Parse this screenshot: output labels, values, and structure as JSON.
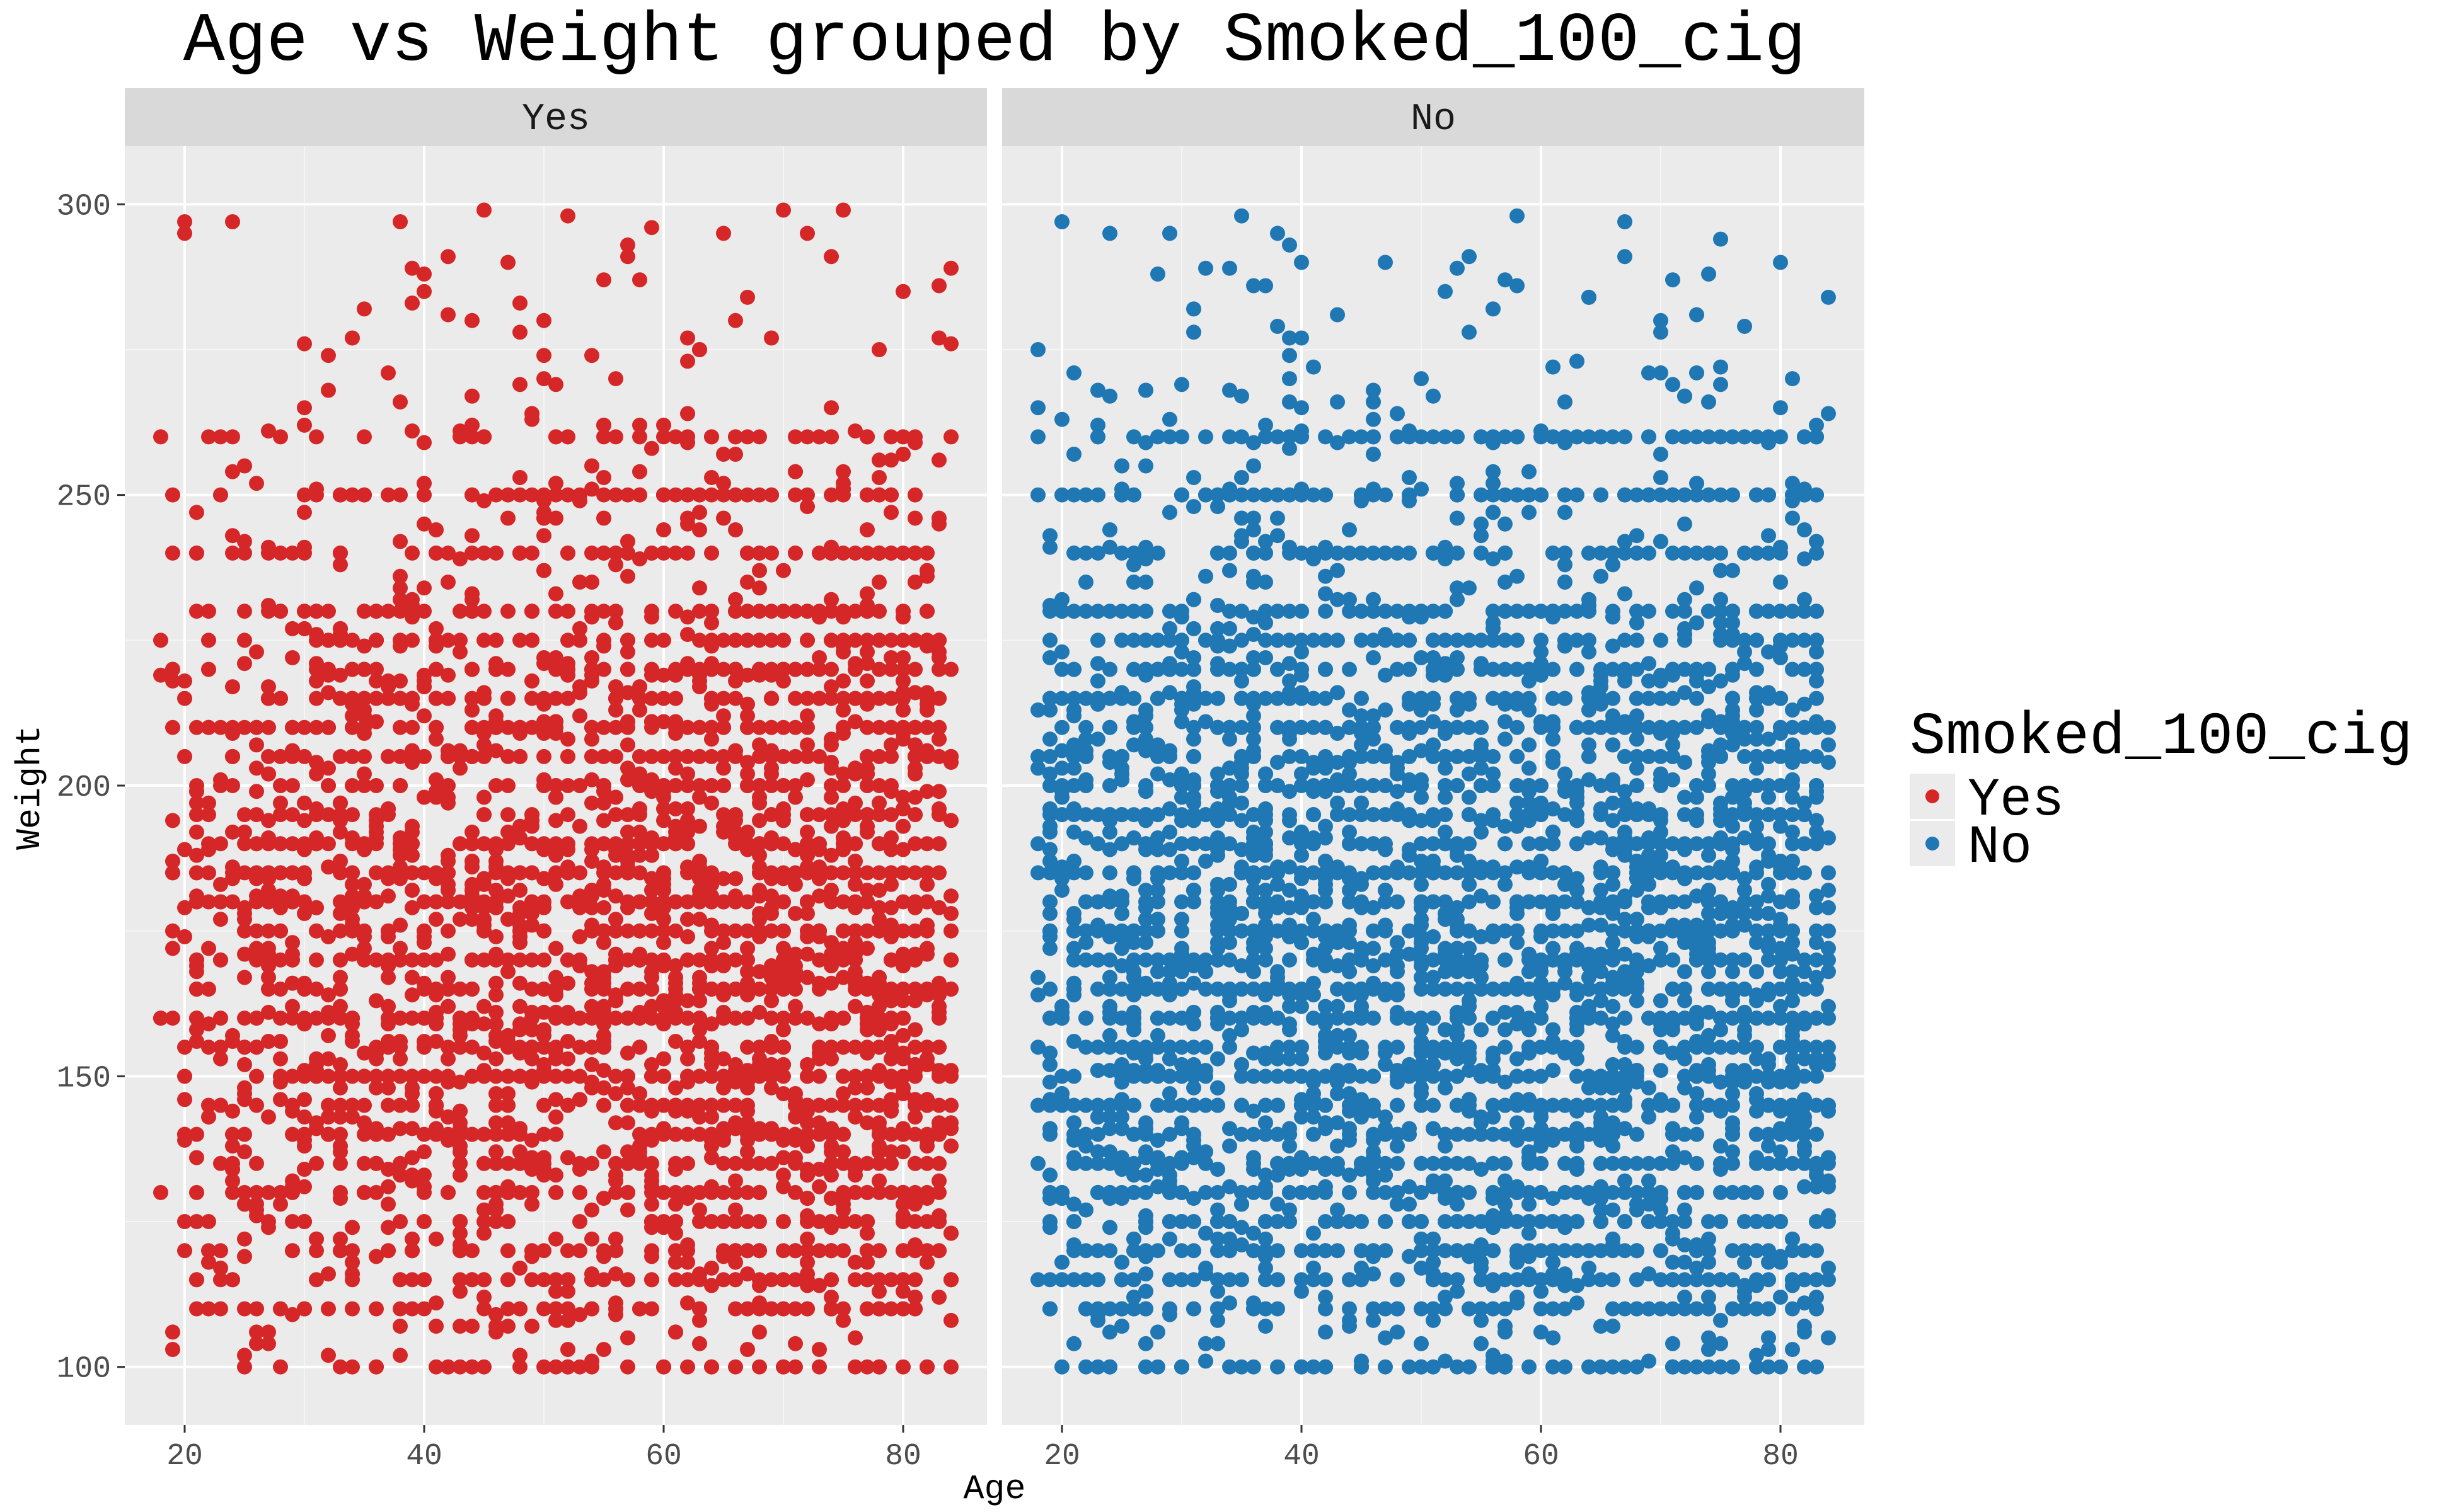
{
  "chart_data": {
    "type": "scatter",
    "title": "Age vs Weight grouped by Smoked_100_cig",
    "xlabel": "Age",
    "ylabel": "Weight",
    "xlim": [
      15,
      87
    ],
    "ylim": [
      90,
      310
    ],
    "x_ticks": [
      20,
      40,
      60,
      80
    ],
    "y_ticks": [
      100,
      150,
      200,
      250,
      300
    ],
    "grid": true,
    "facet_variable": "Smoked_100_cig",
    "legend": {
      "title": "Smoked_100_cig",
      "position": "right",
      "entries": [
        {
          "label": "Yes",
          "color": "#d62728"
        },
        {
          "label": "No",
          "color": "#1f77b4"
        }
      ]
    },
    "series": [
      {
        "name": "Yes",
        "color": "#d62728",
        "x_range": [
          18,
          84
        ],
        "y_range": [
          100,
          299
        ],
        "approx_points": 3200,
        "sample_points": [
          [
            20,
            295
          ],
          [
            45,
            299
          ],
          [
            52,
            298
          ],
          [
            75,
            299
          ],
          [
            84,
            289
          ],
          [
            18,
            130
          ],
          [
            20,
            140
          ],
          [
            28,
            100
          ],
          [
            32,
            102
          ],
          [
            50,
            100
          ],
          [
            60,
            100
          ],
          [
            70,
            100
          ],
          [
            84,
            100
          ],
          [
            40,
            285
          ],
          [
            65,
            295
          ],
          [
            30,
            180
          ],
          [
            40,
            150
          ],
          [
            55,
            200
          ],
          [
            65,
            160
          ],
          [
            70,
            170
          ],
          [
            80,
            150
          ],
          [
            75,
            210
          ],
          [
            35,
            220
          ],
          [
            45,
            240
          ],
          [
            60,
            250
          ],
          [
            72,
            230
          ],
          [
            78,
            120
          ],
          [
            25,
            255
          ],
          [
            50,
            270
          ],
          [
            83,
            245
          ]
        ]
      },
      {
        "name": "No",
        "color": "#1f77b4",
        "x_range": [
          18,
          84
        ],
        "y_range": [
          100,
          298
        ],
        "approx_points": 3800,
        "sample_points": [
          [
            20,
            297
          ],
          [
            58,
            298
          ],
          [
            67,
            297
          ],
          [
            80,
            290
          ],
          [
            84,
            284
          ],
          [
            18,
            265
          ],
          [
            20,
            100
          ],
          [
            23,
            100
          ],
          [
            30,
            100
          ],
          [
            50,
            100
          ],
          [
            57,
            100
          ],
          [
            65,
            100
          ],
          [
            75,
            100
          ],
          [
            84,
            105
          ],
          [
            40,
            290
          ],
          [
            30,
            180
          ],
          [
            40,
            150
          ],
          [
            55,
            200
          ],
          [
            65,
            160
          ],
          [
            70,
            170
          ],
          [
            80,
            150
          ],
          [
            75,
            210
          ],
          [
            35,
            220
          ],
          [
            45,
            240
          ],
          [
            60,
            250
          ],
          [
            72,
            230
          ],
          [
            78,
            120
          ],
          [
            25,
            255
          ],
          [
            50,
            270
          ],
          [
            83,
            225
          ]
        ]
      }
    ]
  }
}
